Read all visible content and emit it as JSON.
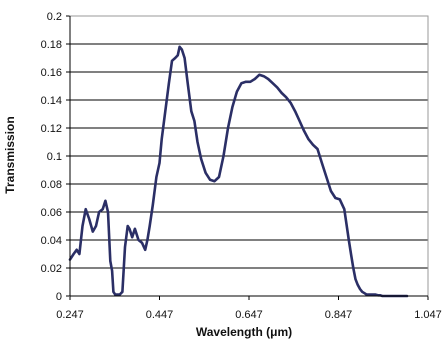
{
  "chart_data": {
    "type": "line",
    "title": "",
    "xlabel": "Wavelength (μm)",
    "ylabel": "Transmission",
    "xlim": [
      0.247,
      1.047
    ],
    "ylim": [
      0,
      0.2
    ],
    "xticks": [
      "0.247",
      "0.447",
      "0.647",
      "0.847",
      "1.047"
    ],
    "yticks": [
      "0",
      "0.02",
      "0.04",
      "0.06",
      "0.08",
      "0.1",
      "0.12",
      "0.14",
      "0.16",
      "0.18",
      "0.2"
    ],
    "grid": "horizontal",
    "legend": "none",
    "colors": {
      "line": "#2b2f66",
      "grid": "#000000",
      "plot_background": "#ffffff"
    },
    "series": [
      {
        "x": [
          0.247,
          0.255,
          0.262,
          0.268,
          0.275,
          0.282,
          0.29,
          0.298,
          0.305,
          0.312,
          0.32,
          0.326,
          0.332,
          0.337,
          0.341,
          0.344,
          0.348,
          0.353,
          0.358,
          0.364,
          0.37,
          0.376,
          0.38,
          0.386,
          0.392,
          0.4,
          0.408,
          0.415,
          0.42,
          0.425,
          0.432,
          0.44,
          0.447,
          0.452,
          0.46,
          0.468,
          0.475,
          0.482,
          0.488,
          0.492,
          0.497,
          0.503,
          0.51,
          0.518,
          0.525,
          0.532,
          0.54,
          0.55,
          0.56,
          0.57,
          0.58,
          0.59,
          0.6,
          0.61,
          0.62,
          0.63,
          0.64,
          0.65,
          0.66,
          0.67,
          0.68,
          0.69,
          0.7,
          0.71,
          0.72,
          0.73,
          0.74,
          0.75,
          0.76,
          0.77,
          0.78,
          0.79,
          0.8,
          0.81,
          0.82,
          0.83,
          0.84,
          0.85,
          0.86,
          0.87,
          0.875,
          0.88,
          0.885,
          0.89,
          0.895,
          0.9,
          0.905,
          0.91,
          0.915,
          0.92,
          0.925,
          0.93,
          0.935,
          0.94,
          0.945,
          0.95,
          0.96,
          0.97,
          0.98,
          0.99,
          1.0
        ],
        "y": [
          0.026,
          0.03,
          0.033,
          0.03,
          0.05,
          0.062,
          0.055,
          0.046,
          0.05,
          0.06,
          0.062,
          0.068,
          0.06,
          0.025,
          0.018,
          0.003,
          0.001,
          0.001,
          0.001,
          0.003,
          0.035,
          0.05,
          0.048,
          0.042,
          0.048,
          0.04,
          0.038,
          0.033,
          0.04,
          0.05,
          0.065,
          0.085,
          0.095,
          0.112,
          0.132,
          0.152,
          0.168,
          0.17,
          0.172,
          0.178,
          0.176,
          0.17,
          0.152,
          0.132,
          0.125,
          0.11,
          0.098,
          0.088,
          0.083,
          0.082,
          0.085,
          0.1,
          0.12,
          0.135,
          0.146,
          0.152,
          0.153,
          0.153,
          0.155,
          0.158,
          0.157,
          0.155,
          0.152,
          0.149,
          0.145,
          0.142,
          0.138,
          0.132,
          0.125,
          0.118,
          0.112,
          0.108,
          0.105,
          0.095,
          0.085,
          0.075,
          0.07,
          0.069,
          0.062,
          0.04,
          0.03,
          0.02,
          0.012,
          0.008,
          0.005,
          0.003,
          0.002,
          0.001,
          0.001,
          0.001,
          0.001,
          0.001,
          0.0005,
          0.0005,
          0.0,
          0.0,
          0.0,
          0.0,
          0.0,
          0.0,
          0.0
        ]
      }
    ]
  }
}
